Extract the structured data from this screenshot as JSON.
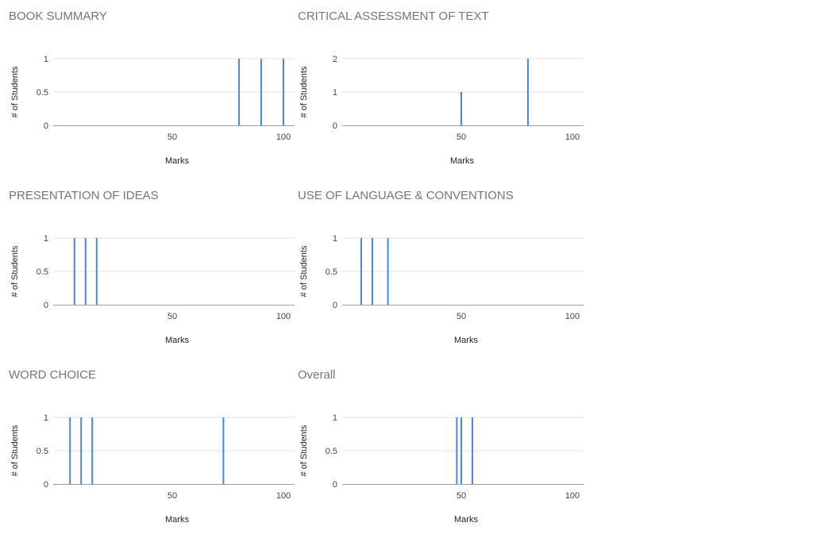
{
  "chart_data": [
    {
      "type": "histogram",
      "title": "BOOK SUMMARY",
      "xlabel": "Marks",
      "ylabel": "# of Students",
      "xlim": [
        0,
        105
      ],
      "ylim": [
        0,
        1
      ],
      "xticks": [
        50,
        100
      ],
      "yticks": [
        0,
        0.5,
        1
      ],
      "x": [
        80,
        90,
        100
      ],
      "values": [
        1,
        1,
        1
      ]
    },
    {
      "type": "histogram",
      "title": "CRITICAL ASSESSMENT OF TEXT",
      "xlabel": "Marks",
      "ylabel": "# of Students",
      "xlim": [
        0,
        105
      ],
      "ylim": [
        0,
        2
      ],
      "xticks": [
        50,
        100
      ],
      "yticks": [
        0,
        1,
        2
      ],
      "x": [
        50,
        80
      ],
      "values": [
        1,
        2
      ]
    },
    {
      "type": "histogram",
      "title": "PRESENTATION OF IDEAS",
      "xlabel": "Marks",
      "ylabel": "# of Students",
      "xlim": [
        0,
        105
      ],
      "ylim": [
        0,
        1
      ],
      "xticks": [
        50,
        100
      ],
      "yticks": [
        0,
        0.5,
        1
      ],
      "x": [
        6,
        11,
        16
      ],
      "values": [
        1,
        1,
        1
      ]
    },
    {
      "type": "histogram",
      "title": "USE OF LANGUAGE & CONVENTIONS",
      "xlabel": "Marks",
      "ylabel": "# of Students",
      "xlim": [
        0,
        105
      ],
      "ylim": [
        0,
        1
      ],
      "xticks": [
        50,
        100
      ],
      "yticks": [
        0,
        0.5,
        1
      ],
      "x": [
        5,
        10,
        17
      ],
      "values": [
        1,
        1,
        1
      ]
    },
    {
      "type": "histogram",
      "title": "WORD CHOICE",
      "xlabel": "Marks",
      "ylabel": "# of Students",
      "xlim": [
        0,
        105
      ],
      "ylim": [
        0,
        1
      ],
      "xticks": [
        50,
        100
      ],
      "yticks": [
        0,
        0.5,
        1
      ],
      "x": [
        4,
        9,
        14,
        73
      ],
      "values": [
        1,
        1,
        1,
        1
      ]
    },
    {
      "type": "histogram",
      "title": "Overall",
      "xlabel": "Marks",
      "ylabel": "# of Students",
      "xlim": [
        0,
        105
      ],
      "ylim": [
        0,
        1
      ],
      "xticks": [
        50,
        100
      ],
      "yticks": [
        0,
        0.5,
        1
      ],
      "x": [
        48,
        50,
        55
      ],
      "values": [
        1,
        1,
        1
      ]
    }
  ],
  "colors": {
    "bar": "#4a86e8",
    "grid": "#e0e0e0",
    "axis": "#9e9e9e",
    "title": "#757575",
    "label": "#222222",
    "tick": "#444444"
  }
}
